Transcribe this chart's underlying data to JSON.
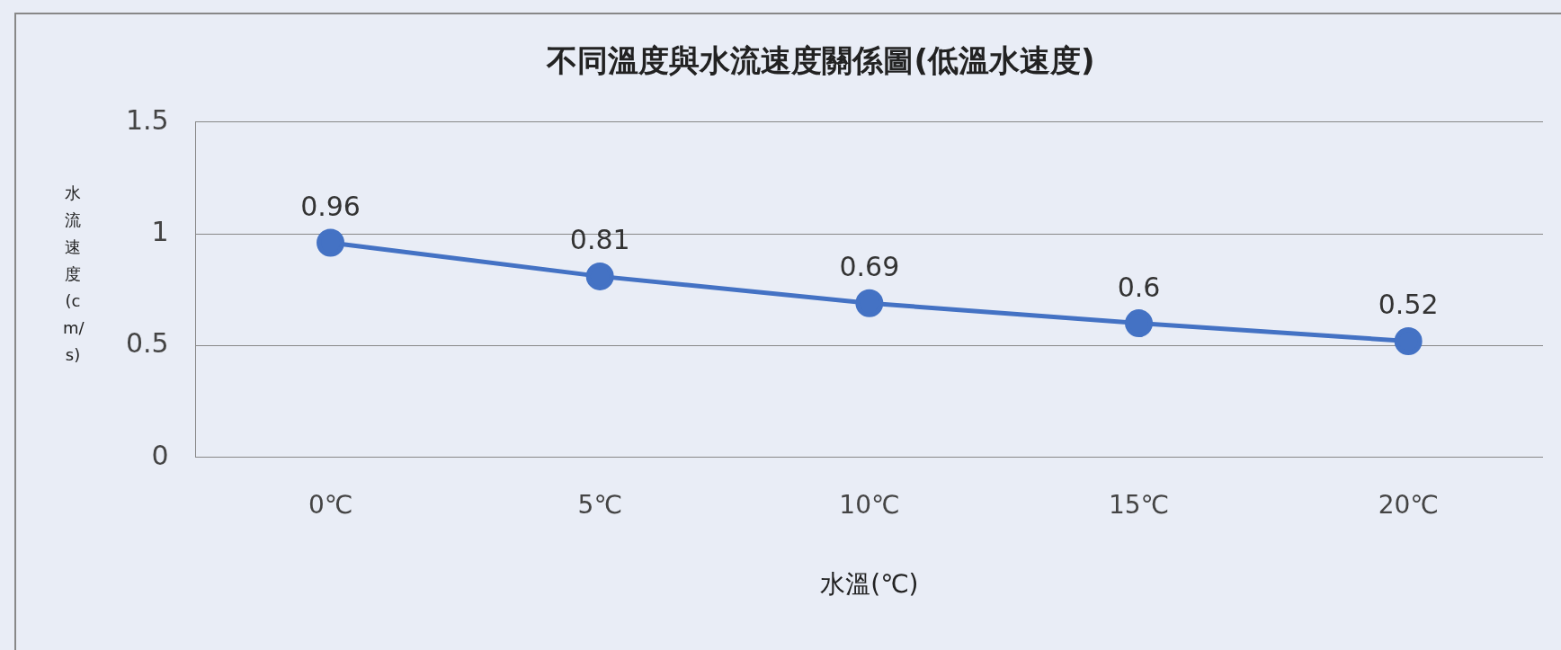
{
  "chart_data": {
    "type": "line",
    "title": "不同溫度與水流速度關係圖(低溫水速度)",
    "xlabel": "水溫(℃)",
    "ylabel": "水流速度(cm/s)",
    "categories": [
      "0℃",
      "5℃",
      "10℃",
      "15℃",
      "20℃"
    ],
    "series": [
      {
        "color": "#4472c4",
        "values": [
          0.96,
          0.81,
          0.69,
          0.6,
          0.52
        ]
      }
    ],
    "ylim": [
      0,
      1.5
    ],
    "yticks": [
      0,
      0.5,
      1,
      1.5
    ],
    "grid": "y",
    "legend": false,
    "marker": "circle",
    "line_style": "solid",
    "data_labels": true
  }
}
